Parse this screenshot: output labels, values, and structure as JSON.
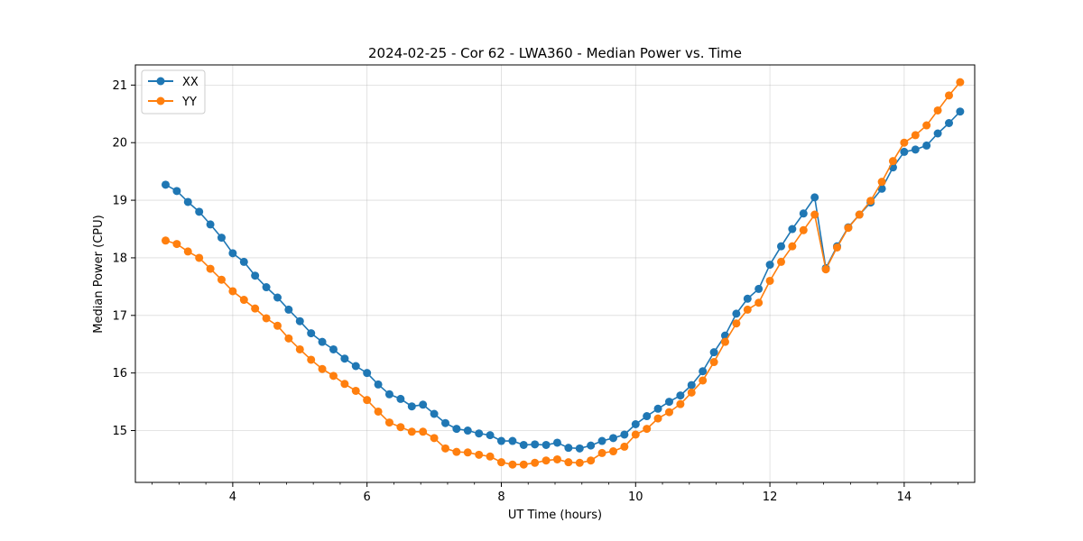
{
  "chart_data": {
    "type": "line",
    "title": "2024-02-25 - Cor 62 - LWA360 - Median Power vs. Time",
    "xlabel": "UT Time (hours)",
    "ylabel": "Median Power (CPU)",
    "xlim": [
      2.55,
      15.05
    ],
    "ylim": [
      14.1,
      21.35
    ],
    "xticks": [
      4,
      6,
      8,
      10,
      12,
      14
    ],
    "yticks": [
      15,
      16,
      17,
      18,
      19,
      20,
      21
    ],
    "grid": true,
    "legend_position": "top-left",
    "x": [
      3.0,
      3.167,
      3.333,
      3.5,
      3.667,
      3.833,
      4.0,
      4.167,
      4.333,
      4.5,
      4.667,
      4.833,
      5.0,
      5.167,
      5.333,
      5.5,
      5.667,
      5.833,
      6.0,
      6.167,
      6.333,
      6.5,
      6.667,
      6.833,
      7.0,
      7.167,
      7.333,
      7.5,
      7.667,
      7.833,
      8.0,
      8.167,
      8.333,
      8.5,
      8.667,
      8.833,
      9.0,
      9.167,
      9.333,
      9.5,
      9.667,
      9.833,
      10.0,
      10.167,
      10.333,
      10.5,
      10.667,
      10.833,
      11.0,
      11.167,
      11.333,
      11.5,
      11.667,
      11.833,
      12.0,
      12.167,
      12.333,
      12.5,
      12.667,
      12.833,
      13.0,
      13.167,
      13.333,
      13.5,
      13.667,
      13.833,
      14.0,
      14.167,
      14.333,
      14.5,
      14.667,
      14.833
    ],
    "series": [
      {
        "name": "XX",
        "color": "#1f77b4",
        "values": [
          19.27,
          19.16,
          18.97,
          18.8,
          18.58,
          18.35,
          18.08,
          17.93,
          17.69,
          17.49,
          17.31,
          17.1,
          16.9,
          16.69,
          16.54,
          16.41,
          16.25,
          16.12,
          16.0,
          15.8,
          15.63,
          15.55,
          15.42,
          15.45,
          15.29,
          15.13,
          15.03,
          15.0,
          14.95,
          14.92,
          14.82,
          14.82,
          14.75,
          14.76,
          14.75,
          14.79,
          14.7,
          14.69,
          14.74,
          14.82,
          14.87,
          14.93,
          15.11,
          15.25,
          15.38,
          15.5,
          15.61,
          15.79,
          16.03,
          16.36,
          16.65,
          17.03,
          17.29,
          17.46,
          17.88,
          18.2,
          18.5,
          18.77,
          19.05,
          17.82,
          18.2,
          18.53,
          18.75,
          18.96,
          19.2,
          19.57,
          19.84,
          19.88,
          19.95,
          20.16,
          20.34,
          20.54
        ]
      },
      {
        "name": "YY",
        "color": "#ff7f0e",
        "values": [
          18.3,
          18.24,
          18.11,
          18.0,
          17.81,
          17.62,
          17.42,
          17.27,
          17.12,
          16.95,
          16.82,
          16.6,
          16.41,
          16.23,
          16.07,
          15.95,
          15.81,
          15.69,
          15.53,
          15.33,
          15.14,
          15.06,
          14.98,
          14.98,
          14.87,
          14.69,
          14.63,
          14.62,
          14.58,
          14.55,
          14.45,
          14.41,
          14.41,
          14.44,
          14.48,
          14.5,
          14.45,
          14.44,
          14.48,
          14.61,
          14.64,
          14.72,
          14.93,
          15.03,
          15.21,
          15.32,
          15.46,
          15.66,
          15.87,
          16.19,
          16.54,
          16.86,
          17.1,
          17.22,
          17.6,
          17.93,
          18.2,
          18.48,
          18.75,
          17.8,
          18.18,
          18.52,
          18.75,
          18.99,
          19.32,
          19.68,
          20.0,
          20.13,
          20.3,
          20.56,
          20.82,
          21.05
        ]
      }
    ]
  }
}
